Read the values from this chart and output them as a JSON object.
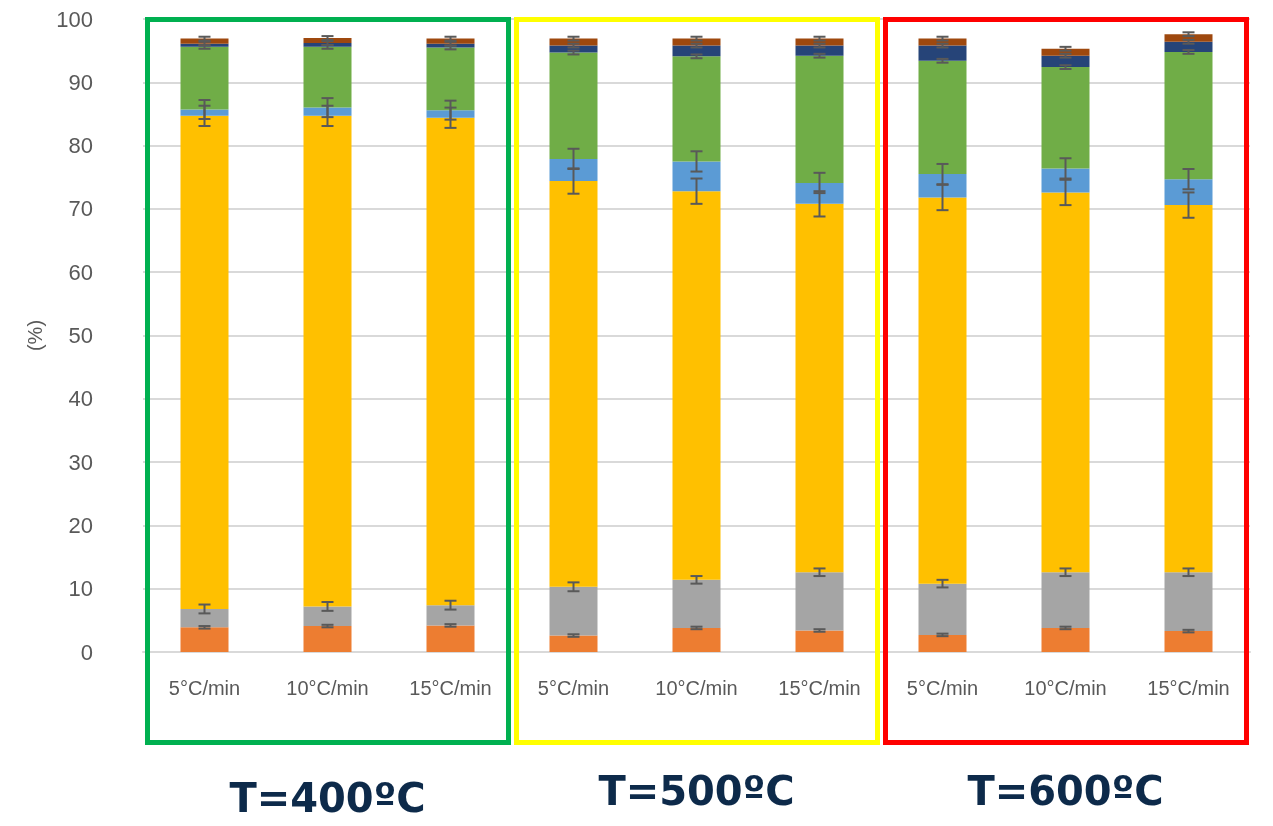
{
  "chart_data": {
    "type": "bar",
    "stacked": true,
    "ylabel": "(%)",
    "categories": [
      "5°C/min",
      "10°C/min",
      "15°C/min",
      "5°C/min",
      "10°C/min",
      "15°C/min",
      "5°C/min",
      "10°C/min",
      "15°C/min"
    ],
    "series": [
      {
        "color": "#ed7d31",
        "values": [
          3.9,
          4.1,
          4.2,
          2.6,
          3.8,
          3.4,
          2.7,
          3.8,
          3.3
        ],
        "errors": [
          0.2,
          0.2,
          0.2,
          0.2,
          0.2,
          0.2,
          0.2,
          0.2,
          0.2
        ]
      },
      {
        "color": "#a5a5a5",
        "values": [
          2.9,
          3.1,
          3.2,
          7.7,
          7.6,
          9.2,
          8.1,
          8.8,
          9.3
        ],
        "errors": [
          0.7,
          0.7,
          0.7,
          0.7,
          0.6,
          0.6,
          0.6,
          0.6,
          0.6
        ]
      },
      {
        "color": "#ffc000",
        "values": [
          77.9,
          77.5,
          77.0,
          64.1,
          61.4,
          58.2,
          61.0,
          60.0,
          58.0
        ],
        "errors": [
          1.6,
          1.6,
          1.6,
          2.0,
          2.0,
          2.0,
          2.0,
          2.0,
          2.0
        ]
      },
      {
        "color": "#5b9bd5",
        "values": [
          1.0,
          1.3,
          1.2,
          3.5,
          4.7,
          3.3,
          3.7,
          3.8,
          4.1
        ],
        "errors": [
          1.5,
          1.5,
          1.5,
          1.6,
          1.6,
          1.6,
          1.6,
          1.6,
          1.6
        ]
      },
      {
        "color": "#70ad47",
        "values": [
          9.9,
          9.6,
          9.9,
          16.8,
          16.6,
          20.1,
          17.9,
          16.0,
          20.1
        ],
        "errors": [
          0.3,
          0.3,
          0.3,
          0.3,
          0.3,
          0.3,
          0.3,
          0.3,
          0.3
        ]
      },
      {
        "color": "#264478",
        "values": [
          0.5,
          0.6,
          0.6,
          1.1,
          1.7,
          1.6,
          2.4,
          1.8,
          1.6
        ],
        "errors": [
          0.3,
          0.3,
          0.3,
          0.3,
          0.3,
          0.3,
          0.3,
          0.3,
          0.3
        ]
      },
      {
        "color": "#9e480e",
        "values": [
          0.8,
          0.8,
          0.8,
          1.1,
          1.1,
          1.1,
          1.1,
          1.1,
          1.2
        ],
        "errors": [
          0.3,
          0.3,
          0.3,
          0.3,
          0.3,
          0.3,
          0.3,
          0.3,
          0.3
        ]
      }
    ],
    "ylim": [
      0,
      100
    ],
    "yticks": [
      0,
      10,
      20,
      30,
      40,
      50,
      60,
      70,
      80,
      90,
      100
    ],
    "grid": "y",
    "annotations": [
      "T=400ºC",
      "T=500ºC",
      "T=600ºC"
    ]
  }
}
